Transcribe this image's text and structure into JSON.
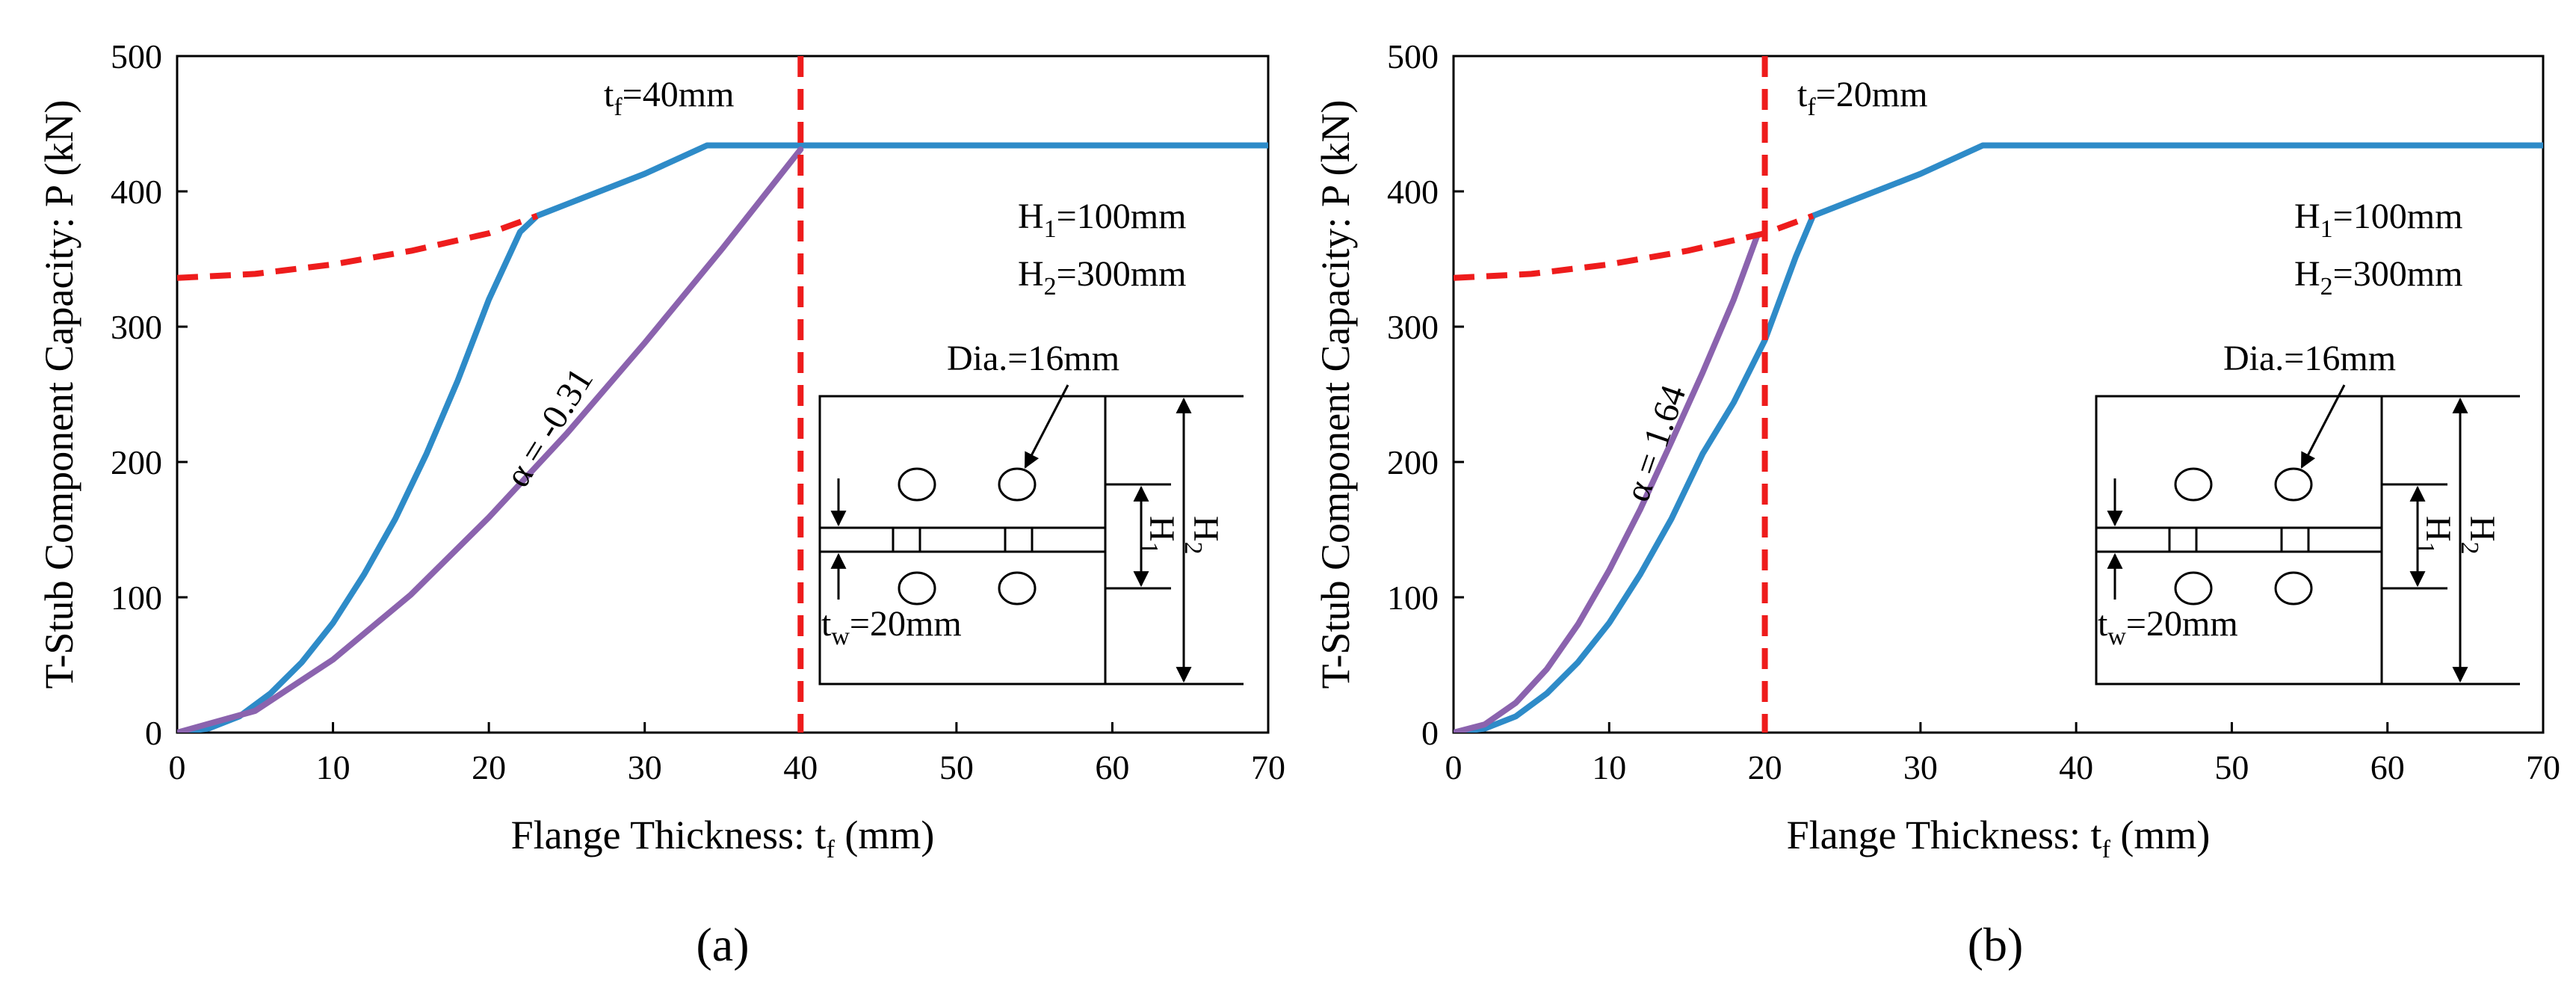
{
  "chart_data": [
    {
      "type": "line",
      "caption": "(a)",
      "xlabel": "Flange Thickness: t",
      "xlabel_sub": "f",
      "xlabel_unit": " (mm)",
      "ylabel": "T-Stub Component Capacity: P (kN)",
      "xlim": [
        0,
        70
      ],
      "ylim": [
        0,
        500
      ],
      "xticks": [
        0,
        10,
        20,
        30,
        40,
        50,
        60,
        70
      ],
      "yticks": [
        0,
        100,
        200,
        300,
        400,
        500
      ],
      "grid": false,
      "colors": {
        "blue": "#2E8BC8",
        "purple": "#8B63AE",
        "red": "#EE1C1C"
      },
      "series": [
        {
          "style": "solid-blue",
          "x": [
            0,
            2,
            4,
            6,
            8,
            10,
            12,
            14,
            16,
            18,
            20,
            22,
            23.1,
            26,
            30,
            34,
            40,
            50,
            60,
            70
          ],
          "y": [
            0,
            3,
            12,
            29,
            52,
            81,
            117,
            158,
            206,
            260,
            320,
            370,
            382,
            395,
            413,
            434,
            434,
            434,
            434,
            434
          ]
        },
        {
          "style": "purple",
          "x": [
            0,
            5,
            10,
            15,
            20,
            25,
            30,
            35,
            40
          ],
          "y": [
            0,
            16,
            54,
            102,
            159,
            221,
            288,
            358,
            431
          ]
        },
        {
          "style": "dashed-red",
          "x": [
            0,
            5,
            10,
            15,
            20,
            23.1
          ],
          "y": [
            336,
            339,
            346,
            356,
            369,
            382
          ]
        }
      ],
      "vline": {
        "x": 40
      },
      "annotations": {
        "tf_pre": "t",
        "tf_sub": "f",
        "tf_value": "=40mm",
        "h1_pre": "H",
        "h1_sub": "1",
        "h1_value": "=100mm",
        "h2_pre": "H",
        "h2_sub": "2",
        "h2_value": "=300mm",
        "alpha": "α = -0.31"
      },
      "inset": {
        "dia": "Dia.=16mm",
        "tw_pre": "t",
        "tw_sub": "w",
        "tw_value": "=20mm",
        "h1_label": "H",
        "h1_sub": "1",
        "h2_label": "H",
        "h2_sub": "2"
      }
    },
    {
      "type": "line",
      "caption": "(b)",
      "xlabel": "Flange Thickness: t",
      "xlabel_sub": "f",
      "xlabel_unit": " (mm)",
      "ylabel": "T-Stub Component Capacity: P (kN)",
      "xlim": [
        0,
        70
      ],
      "ylim": [
        0,
        500
      ],
      "xticks": [
        0,
        10,
        20,
        30,
        40,
        50,
        60,
        70
      ],
      "yticks": [
        0,
        100,
        200,
        300,
        400,
        500
      ],
      "grid": false,
      "colors": {
        "blue": "#2E8BC8",
        "purple": "#8B63AE",
        "red": "#EE1C1C"
      },
      "series": [
        {
          "style": "solid-blue",
          "x": [
            0,
            2,
            4,
            6,
            8,
            10,
            12,
            14,
            16,
            18,
            20,
            22,
            23.1,
            26,
            30,
            34,
            40,
            50,
            60,
            70
          ],
          "y": [
            0,
            3,
            12,
            29,
            52,
            81,
            117,
            158,
            206,
            244,
            290,
            352,
            382,
            395,
            413,
            434,
            434,
            434,
            434,
            434
          ]
        },
        {
          "style": "purple",
          "x": [
            0,
            2,
            4,
            6,
            8,
            10,
            12,
            14,
            16,
            18,
            19.5
          ],
          "y": [
            0,
            6,
            22,
            47,
            80,
            120,
            165,
            215,
            266,
            320,
            367
          ]
        },
        {
          "style": "dashed-red",
          "x": [
            0,
            5,
            10,
            15,
            20,
            23.1
          ],
          "y": [
            336,
            339,
            346,
            356,
            369,
            382
          ]
        }
      ],
      "vline": {
        "x": 20
      },
      "annotations": {
        "tf_pre": "t",
        "tf_sub": "f",
        "tf_value": "=20mm",
        "h1_pre": "H",
        "h1_sub": "1",
        "h1_value": "=100mm",
        "h2_pre": "H",
        "h2_sub": "2",
        "h2_value": "=300mm",
        "alpha": "α = 1.64"
      },
      "inset": {
        "dia": "Dia.=16mm",
        "tw_pre": "t",
        "tw_sub": "w",
        "tw_value": "=20mm",
        "h1_label": "H",
        "h1_sub": "1",
        "h2_label": "H",
        "h2_sub": "2"
      }
    }
  ]
}
